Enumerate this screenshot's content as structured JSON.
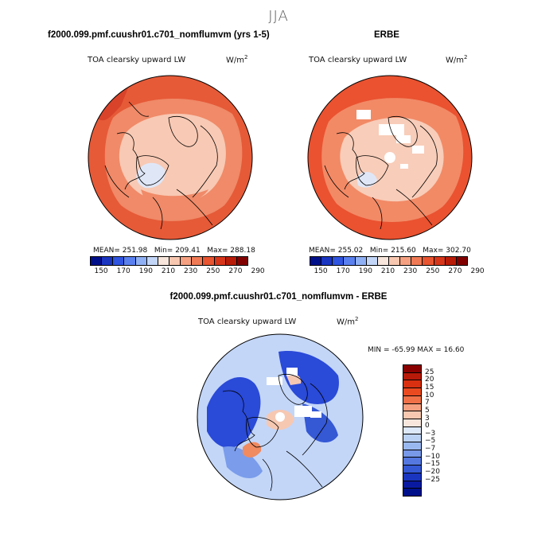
{
  "figure": {
    "suptitle": "JJA"
  },
  "panel_model": {
    "title": "f2000.099.pmf.cuushr01.c701_nomflumvm (yrs 1-5)",
    "field_label": "TOA clearsky upward LW",
    "units_base": "W/m",
    "units_exp": "2",
    "stats": {
      "mean": "MEAN= 251.98",
      "min": "Min= 209.41",
      "max": "Max= 288.18"
    }
  },
  "panel_obs": {
    "title": "ERBE",
    "field_label": "TOA clearsky upward LW",
    "units_base": "W/m",
    "units_exp": "2",
    "stats": {
      "mean": "MEAN= 255.02",
      "min": "Min= 215.60",
      "max": "Max= 302.70"
    }
  },
  "panel_diff": {
    "title": "f2000.099.pmf.cuushr01.c701_nomflumvm - ERBE",
    "field_label": "TOA clearsky upward LW",
    "units_base": "W/m",
    "units_exp": "2",
    "minmax": "MIN = -65.99 MAX =  16.60"
  },
  "colorbar_abs": {
    "colors": [
      "#00108a",
      "#1a35c0",
      "#3055e0",
      "#5a80f0",
      "#8fb0f5",
      "#c3d6f8",
      "#f8e6dc",
      "#f8c7b0",
      "#f5a080",
      "#f07a55",
      "#e85530",
      "#d8361a",
      "#b81c08",
      "#800000"
    ],
    "tick_labels": [
      "150",
      "170",
      "190",
      "210",
      "230",
      "250",
      "270",
      "290"
    ]
  },
  "colorbar_diff": {
    "colors_top_to_bottom": [
      "#8a0000",
      "#b81a0a",
      "#d83010",
      "#ea4a20",
      "#f07048",
      "#f5a080",
      "#f8c8b0",
      "#f8e6dc",
      "#dde8f8",
      "#bcd2f5",
      "#9ab8f0",
      "#7898e8",
      "#5578e0",
      "#3558d5",
      "#1a35c0",
      "#0a1aa0",
      "#00108a"
    ],
    "labels_top_to_bottom": [
      "25",
      "20",
      "15",
      "10",
      "7",
      "5",
      "3",
      "0",
      "−3",
      "−5",
      "−7",
      "−10",
      "−15",
      "−20",
      "−25"
    ]
  },
  "map_colors": {
    "coast": "#000000",
    "model_outer": "#e65a38",
    "model_mid": "#f08a68",
    "model_inner": "#f8c9b4",
    "model_ice": "#dfe7f7",
    "obs_outer": "#ea5230",
    "obs_mid": "#f28a66",
    "obs_inner": "#f8cdb9",
    "missing": "#ffffff",
    "diff_base": "#c3d6f8",
    "diff_blue": "#2a4ad8",
    "diff_lightblue": "#7a9ceb",
    "diff_pink": "#f6c8b2",
    "diff_orange": "#f08a60"
  }
}
